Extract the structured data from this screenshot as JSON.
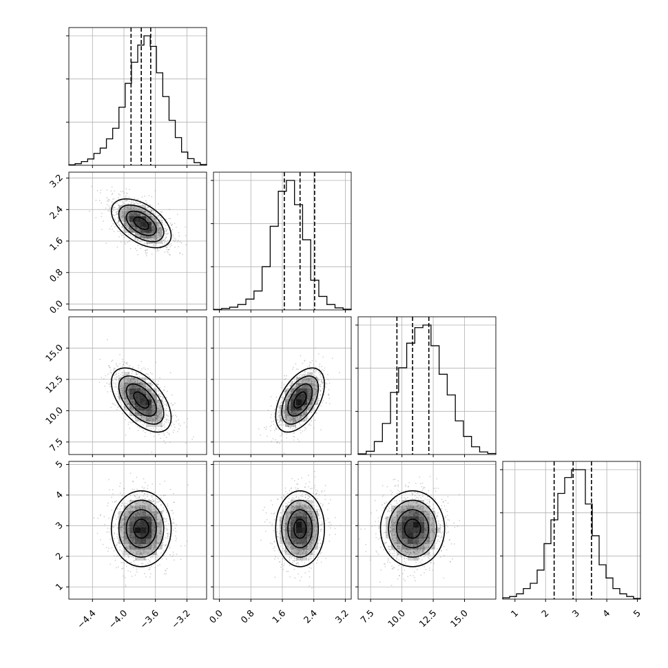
{
  "chart_data": {
    "type": "corner",
    "title": "",
    "grid": true,
    "parameters": [
      {
        "index": 0,
        "range": [
          -4.7,
          -2.95
        ],
        "ticks": [
          -4.4,
          -4.0,
          -3.6,
          -3.2
        ],
        "tick_labels": [
          "−4.4",
          "−4.0",
          "−3.6",
          "−3.2"
        ],
        "quantiles": [
          -3.91,
          -3.78,
          -3.66
        ],
        "histogram": [
          0.4,
          1.2,
          2.8,
          4.8,
          9,
          13,
          20,
          28,
          44,
          62,
          78,
          91,
          98,
          90,
          70,
          52,
          34,
          21,
          10,
          5,
          2,
          0.6
        ]
      },
      {
        "index": 1,
        "range": [
          -0.15,
          3.35
        ],
        "ticks": [
          0.0,
          0.8,
          1.6,
          2.4,
          3.2
        ],
        "tick_labels": [
          "0.0",
          "0.8",
          "1.6",
          "2.4",
          "3.2"
        ],
        "quantiles": [
          1.65,
          2.05,
          2.42
        ],
        "histogram": [
          0.4,
          1,
          2,
          4,
          8,
          14,
          32,
          62,
          88,
          96,
          78,
          52,
          22,
          10,
          4,
          1.5,
          0.5
        ]
      },
      {
        "index": 2,
        "range": [
          6.5,
          17.5
        ],
        "ticks": [
          7.5,
          10.0,
          12.5,
          15.0
        ],
        "tick_labels": [
          "7.5",
          "10.0",
          "12.5",
          "15.0"
        ],
        "quantiles": [
          9.6,
          10.85,
          12.15
        ],
        "histogram": [
          0.5,
          2.5,
          10,
          24,
          48,
          67,
          86,
          98,
          100,
          84,
          62,
          46,
          26,
          14,
          6,
          2,
          0.8
        ]
      },
      {
        "index": 3,
        "range": [
          0.6,
          5.1
        ],
        "ticks": [
          1,
          2,
          3,
          4,
          5
        ],
        "tick_labels": [
          "1",
          "2",
          "3",
          "4",
          "5"
        ],
        "quantiles": [
          2.28,
          2.9,
          3.5
        ],
        "histogram": [
          1,
          2,
          4,
          8,
          12,
          22,
          42,
          60,
          80,
          92,
          98,
          98,
          72,
          48,
          26,
          16,
          8,
          4,
          2,
          0.5
        ]
      }
    ],
    "pairs": [
      {
        "x": 0,
        "y": 1,
        "center": [
          -3.78,
          2.05
        ],
        "sd": [
          0.19,
          0.31
        ],
        "corr": -0.5
      },
      {
        "x": 0,
        "y": 2,
        "center": [
          -3.78,
          10.85
        ],
        "sd": [
          0.19,
          1.28
        ],
        "corr": -0.55
      },
      {
        "x": 1,
        "y": 2,
        "center": [
          2.05,
          10.85
        ],
        "sd": [
          0.31,
          1.28
        ],
        "corr": 0.5
      },
      {
        "x": 0,
        "y": 3,
        "center": [
          -3.78,
          2.9
        ],
        "sd": [
          0.19,
          0.62
        ],
        "corr": 0.0
      },
      {
        "x": 1,
        "y": 3,
        "center": [
          2.05,
          2.9
        ],
        "sd": [
          0.31,
          0.62
        ],
        "corr": 0.0
      },
      {
        "x": 2,
        "y": 3,
        "center": [
          10.85,
          2.9
        ],
        "sd": [
          1.28,
          0.62
        ],
        "corr": 0.0
      }
    ],
    "contour_levels_sigma": [
      0.5,
      1.0,
      1.5,
      2.0
    ],
    "colors": {
      "line": "#000000",
      "grid": "#b0b0b0",
      "density": "#000000",
      "points": "#9a9a9a"
    }
  }
}
